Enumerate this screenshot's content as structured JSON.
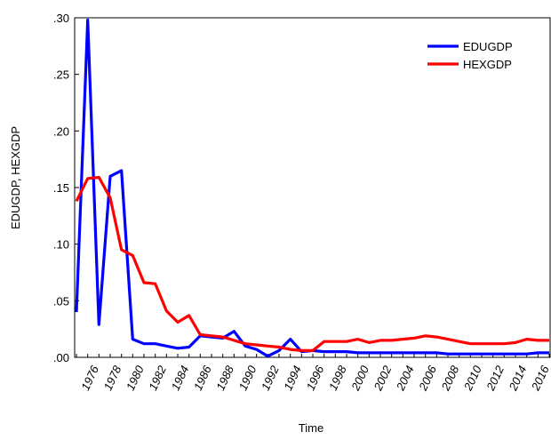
{
  "chart_data": {
    "type": "line",
    "title": "",
    "xlabel": "Time",
    "ylabel": "EDUGDP, HEXGDP",
    "xlim": [
      1975,
      2017
    ],
    "ylim": [
      0,
      0.3
    ],
    "yticks": [
      0,
      0.05,
      0.1,
      0.15,
      0.2,
      0.25,
      0.3
    ],
    "ytick_labels": [
      ".00",
      ".05",
      ".10",
      ".15",
      ".20",
      ".25",
      ".30"
    ],
    "xticks": [
      1976,
      1978,
      1980,
      1982,
      1984,
      1986,
      1988,
      1990,
      1992,
      1994,
      1996,
      1998,
      2000,
      2002,
      2004,
      2006,
      2008,
      2010,
      2012,
      2014,
      2016
    ],
    "xtick_labels": [
      "1976",
      "1978",
      "1980",
      "1982",
      "1984",
      "1986",
      "1988",
      "1990",
      "1992",
      "1994",
      "1996",
      "1998",
      "2000",
      "2002",
      "2004",
      "2006",
      "2008",
      "2010",
      "2012",
      "2014",
      "2016"
    ],
    "grid": false,
    "legend_position": "top-right",
    "x": [
      1975,
      1976,
      1977,
      1978,
      1979,
      1980,
      1981,
      1982,
      1983,
      1984,
      1985,
      1986,
      1987,
      1988,
      1989,
      1990,
      1991,
      1992,
      1993,
      1994,
      1995,
      1996,
      1997,
      1998,
      1999,
      2000,
      2001,
      2002,
      2003,
      2004,
      2005,
      2006,
      2007,
      2008,
      2009,
      2010,
      2011,
      2012,
      2013,
      2014,
      2015,
      2016,
      2017
    ],
    "series": [
      {
        "name": "EDUGDP",
        "color": "#0000ff",
        "values": [
          0.04,
          0.298,
          0.029,
          0.16,
          0.165,
          0.016,
          0.012,
          0.012,
          0.01,
          0.008,
          0.009,
          0.019,
          0.018,
          0.017,
          0.023,
          0.01,
          0.007,
          0.001,
          0.006,
          0.016,
          0.005,
          0.006,
          0.005,
          0.005,
          0.005,
          0.004,
          0.004,
          0.004,
          0.004,
          0.004,
          0.004,
          0.004,
          0.004,
          0.003,
          0.003,
          0.003,
          0.003,
          0.003,
          0.003,
          0.003,
          0.003,
          0.004,
          0.004
        ]
      },
      {
        "name": "HEXGDP",
        "color": "#ff0000",
        "values": [
          0.138,
          0.158,
          0.159,
          0.141,
          0.095,
          0.09,
          0.066,
          0.065,
          0.041,
          0.031,
          0.037,
          0.02,
          0.019,
          0.018,
          0.015,
          0.012,
          0.011,
          0.01,
          0.009,
          0.007,
          0.006,
          0.006,
          0.014,
          0.014,
          0.014,
          0.016,
          0.013,
          0.015,
          0.015,
          0.016,
          0.017,
          0.019,
          0.018,
          0.016,
          0.014,
          0.012,
          0.012,
          0.012,
          0.012,
          0.013,
          0.016,
          0.015,
          0.015
        ]
      }
    ]
  }
}
